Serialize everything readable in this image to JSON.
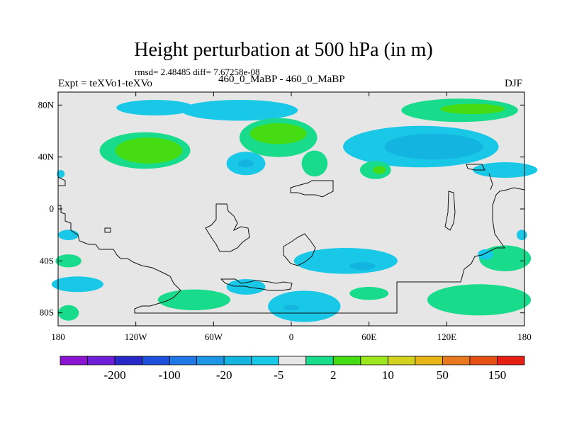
{
  "chart_data": {
    "type": "heatmap",
    "title": "Height perturbation at 500 hPa (in m)",
    "subtitle": "rmsd= 2.48485 diff= 7.67258e-08",
    "left_label": "Expt = teXVo1-teXVo",
    "center_label": "460_0_MaBP - 460_0_MaBP",
    "right_label": "DJF",
    "x_axis": {
      "range": [
        -180,
        180
      ],
      "ticks": [
        {
          "value": -180,
          "label": "180"
        },
        {
          "value": -120,
          "label": "120W"
        },
        {
          "value": -60,
          "label": "60W"
        },
        {
          "value": 0,
          "label": "0"
        },
        {
          "value": 60,
          "label": "60E"
        },
        {
          "value": 120,
          "label": "120E"
        },
        {
          "value": 180,
          "label": "180"
        }
      ]
    },
    "y_axis": {
      "range": [
        -90,
        90
      ],
      "ticks": [
        {
          "value": 80,
          "label": "80N"
        },
        {
          "value": 40,
          "label": "40N"
        },
        {
          "value": 0,
          "label": "0"
        },
        {
          "value": -40,
          "label": "40S"
        },
        {
          "value": -80,
          "label": "80S"
        }
      ]
    },
    "colorbar": {
      "colors": [
        "#8a14d2",
        "#6e1ed6",
        "#2828c8",
        "#1e50dc",
        "#2078e6",
        "#1e96e6",
        "#14b4e0",
        "#18c8e6",
        "#e6e6e6",
        "#18dc8c",
        "#46dc14",
        "#9ce61e",
        "#d2d21e",
        "#e6b414",
        "#e6781e",
        "#e65014",
        "#e61e14"
      ],
      "labels": [
        {
          "after_index": 1,
          "text": "-200"
        },
        {
          "after_index": 3,
          "text": "-100"
        },
        {
          "after_index": 5,
          "text": "-20"
        },
        {
          "after_index": 7,
          "text": "-5"
        },
        {
          "after_index": 9,
          "text": "2"
        },
        {
          "after_index": 11,
          "text": "10"
        },
        {
          "after_index": 13,
          "text": "50"
        },
        {
          "after_index": 15,
          "text": "150"
        }
      ]
    },
    "anomalies": [
      {
        "kind": "neg",
        "level": 1,
        "lon": -40,
        "lat": 76,
        "rlon": 45,
        "rlat": 8
      },
      {
        "kind": "neg",
        "level": 1,
        "lon": -105,
        "lat": 78,
        "rlon": 30,
        "rlat": 6
      },
      {
        "kind": "pos",
        "level": 1,
        "lon": 130,
        "lat": 76,
        "rlon": 45,
        "rlat": 9
      },
      {
        "kind": "pos",
        "level": 2,
        "lon": 140,
        "lat": 77,
        "rlon": 25,
        "rlat": 4
      },
      {
        "kind": "pos",
        "level": 1,
        "lon": -113,
        "lat": 45,
        "rlon": 35,
        "rlat": 14
      },
      {
        "kind": "pos",
        "level": 2,
        "lon": -110,
        "lat": 45,
        "rlon": 26,
        "rlat": 10
      },
      {
        "kind": "pos",
        "level": 1,
        "lon": -10,
        "lat": 55,
        "rlon": 30,
        "rlat": 15
      },
      {
        "kind": "pos",
        "level": 2,
        "lon": -10,
        "lat": 58,
        "rlon": 22,
        "rlat": 8
      },
      {
        "kind": "pos",
        "level": 1,
        "lon": 18,
        "lat": 35,
        "rlon": 10,
        "rlat": 10
      },
      {
        "kind": "neg",
        "level": 1,
        "lon": -35,
        "lat": 35,
        "rlon": 15,
        "rlat": 9
      },
      {
        "kind": "neg",
        "level": 2,
        "lon": -35,
        "lat": 35,
        "rlon": 6,
        "rlat": 3
      },
      {
        "kind": "neg",
        "level": 1,
        "lon": 100,
        "lat": 48,
        "rlon": 60,
        "rlat": 16
      },
      {
        "kind": "neg",
        "level": 2,
        "lon": 110,
        "lat": 48,
        "rlon": 38,
        "rlat": 10
      },
      {
        "kind": "neg",
        "level": 1,
        "lon": 165,
        "lat": 30,
        "rlon": 25,
        "rlat": 6
      },
      {
        "kind": "pos",
        "level": 1,
        "lon": 65,
        "lat": 30,
        "rlon": 12,
        "rlat": 7
      },
      {
        "kind": "pos",
        "level": 2,
        "lon": 68,
        "lat": 30,
        "rlon": 5,
        "rlat": 3
      },
      {
        "kind": "neg",
        "level": 1,
        "lon": 42,
        "lat": -40,
        "rlon": 40,
        "rlat": 10
      },
      {
        "kind": "neg",
        "level": 2,
        "lon": 55,
        "lat": -44,
        "rlon": 10,
        "rlat": 3
      },
      {
        "kind": "neg",
        "level": 1,
        "lon": 10,
        "lat": -75,
        "rlon": 28,
        "rlat": 12
      },
      {
        "kind": "neg",
        "level": 2,
        "lon": 0,
        "lat": -76,
        "rlon": 6,
        "rlat": 2
      },
      {
        "kind": "neg",
        "level": 1,
        "lon": -35,
        "lat": -60,
        "rlon": 15,
        "rlat": 6
      },
      {
        "kind": "pos",
        "level": 1,
        "lon": -75,
        "lat": -70,
        "rlon": 28,
        "rlat": 8
      },
      {
        "kind": "pos",
        "level": 1,
        "lon": 60,
        "lat": -65,
        "rlon": 15,
        "rlat": 5
      },
      {
        "kind": "pos",
        "level": 1,
        "lon": 145,
        "lat": -70,
        "rlon": 40,
        "rlat": 12
      },
      {
        "kind": "pos",
        "level": 1,
        "lon": 165,
        "lat": -38,
        "rlon": 20,
        "rlat": 10
      },
      {
        "kind": "neg",
        "level": 1,
        "lon": 150,
        "lat": -35,
        "rlon": 6,
        "rlat": 4
      },
      {
        "kind": "pos",
        "level": 1,
        "lon": -172,
        "lat": -40,
        "rlon": 10,
        "rlat": 5
      },
      {
        "kind": "neg",
        "level": 1,
        "lon": -165,
        "lat": -58,
        "rlon": 20,
        "rlat": 6
      },
      {
        "kind": "pos",
        "level": 1,
        "lon": -172,
        "lat": -80,
        "rlon": 8,
        "rlat": 6
      },
      {
        "kind": "neg",
        "level": 1,
        "lon": -172,
        "lat": -20,
        "rlon": 8,
        "rlat": 4
      },
      {
        "kind": "neg",
        "level": 1,
        "lon": 178,
        "lat": -20,
        "rlon": 4,
        "rlat": 4
      },
      {
        "kind": "neg",
        "level": 1,
        "lon": -178,
        "lat": 27,
        "rlon": 3,
        "rlat": 3
      }
    ]
  }
}
